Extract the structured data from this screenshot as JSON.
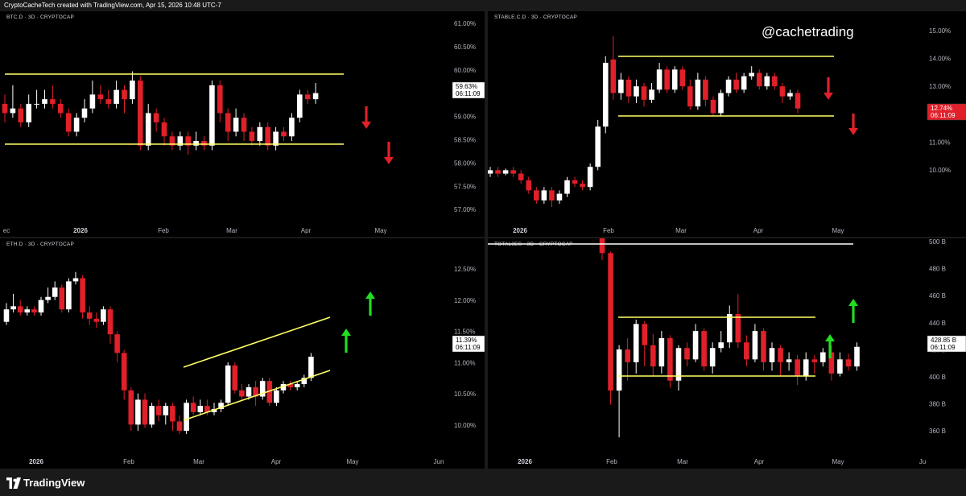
{
  "header": {
    "text": "CryptoCacheTech created with TradingView.com, Apr 15, 2026 10:48 UTC-7"
  },
  "watermark": "@cachetrading",
  "footer": {
    "brand": "TradingView"
  },
  "colors": {
    "up": "#ffffff",
    "down": "#e0202a",
    "channel": "#ffff66",
    "arrow_down": "#e0202a",
    "arrow_up": "#22dd22"
  },
  "chart_data": [
    {
      "id": "btc",
      "type": "candlestick",
      "title": "BTC.D · 3D · CRYPTOCAP",
      "y_ticks": [
        "61.00%",
        "60.50%",
        "60.00%",
        "59.50%",
        "59.00%",
        "58.50%",
        "58.00%",
        "57.50%",
        "57.00%"
      ],
      "x_labels": [
        "ec",
        "2026",
        "Feb",
        "Mar",
        "Apr",
        "May"
      ],
      "last_price": "59.63%",
      "countdown": "06:11:09",
      "price_tag_color": "#ffffff",
      "ylim": [
        56.85,
        61.15
      ],
      "candles": [
        {
          "o": 59.4,
          "c": 59.2,
          "h": 59.6,
          "l": 59.0
        },
        {
          "o": 59.2,
          "c": 59.3,
          "h": 59.8,
          "l": 59.1
        },
        {
          "o": 59.3,
          "c": 59.0,
          "h": 59.4,
          "l": 58.9
        },
        {
          "o": 59.0,
          "c": 59.4,
          "h": 59.6,
          "l": 58.9
        },
        {
          "o": 59.4,
          "c": 59.4,
          "h": 59.7,
          "l": 59.3
        },
        {
          "o": 59.4,
          "c": 59.5,
          "h": 59.7,
          "l": 59.3
        },
        {
          "o": 59.5,
          "c": 59.4,
          "h": 59.8,
          "l": 59.3
        },
        {
          "o": 59.4,
          "c": 59.2,
          "h": 59.5,
          "l": 59.1
        },
        {
          "o": 59.2,
          "c": 58.8,
          "h": 59.3,
          "l": 58.7
        },
        {
          "o": 58.8,
          "c": 59.1,
          "h": 59.2,
          "l": 58.7
        },
        {
          "o": 59.1,
          "c": 59.3,
          "h": 59.5,
          "l": 59.0
        },
        {
          "o": 59.3,
          "c": 59.6,
          "h": 59.9,
          "l": 59.2
        },
        {
          "o": 59.6,
          "c": 59.5,
          "h": 59.8,
          "l": 59.4
        },
        {
          "o": 59.5,
          "c": 59.4,
          "h": 59.7,
          "l": 59.3
        },
        {
          "o": 59.4,
          "c": 59.7,
          "h": 59.9,
          "l": 59.3
        },
        {
          "o": 59.7,
          "c": 59.5,
          "h": 59.8,
          "l": 59.2
        },
        {
          "o": 59.5,
          "c": 59.9,
          "h": 60.1,
          "l": 59.4
        },
        {
          "o": 59.9,
          "c": 58.5,
          "h": 60.0,
          "l": 58.4
        },
        {
          "o": 58.5,
          "c": 59.2,
          "h": 59.4,
          "l": 58.4
        },
        {
          "o": 59.2,
          "c": 59.0,
          "h": 59.3,
          "l": 58.8
        },
        {
          "o": 59.0,
          "c": 58.7,
          "h": 59.1,
          "l": 58.5
        },
        {
          "o": 58.7,
          "c": 58.5,
          "h": 58.8,
          "l": 58.4
        },
        {
          "o": 58.5,
          "c": 58.7,
          "h": 58.8,
          "l": 58.4
        },
        {
          "o": 58.7,
          "c": 58.5,
          "h": 58.8,
          "l": 58.3
        },
        {
          "o": 58.5,
          "c": 58.6,
          "h": 58.8,
          "l": 58.4
        },
        {
          "o": 58.6,
          "c": 58.5,
          "h": 58.7,
          "l": 58.4
        },
        {
          "o": 58.5,
          "c": 59.8,
          "h": 59.9,
          "l": 58.4
        },
        {
          "o": 59.8,
          "c": 59.2,
          "h": 59.9,
          "l": 59.0
        },
        {
          "o": 59.2,
          "c": 58.8,
          "h": 59.3,
          "l": 58.6
        },
        {
          "o": 58.8,
          "c": 59.1,
          "h": 59.3,
          "l": 58.7
        },
        {
          "o": 59.1,
          "c": 58.8,
          "h": 59.2,
          "l": 58.6
        },
        {
          "o": 58.8,
          "c": 58.6,
          "h": 58.9,
          "l": 58.5
        },
        {
          "o": 58.6,
          "c": 58.9,
          "h": 59.0,
          "l": 58.5
        },
        {
          "o": 58.9,
          "c": 58.5,
          "h": 59.0,
          "l": 58.4
        },
        {
          "o": 58.5,
          "c": 58.8,
          "h": 58.9,
          "l": 58.4
        },
        {
          "o": 58.8,
          "c": 58.7,
          "h": 58.9,
          "l": 58.6
        },
        {
          "o": 58.7,
          "c": 59.1,
          "h": 59.2,
          "l": 58.6
        },
        {
          "o": 59.1,
          "c": 59.6,
          "h": 59.7,
          "l": 59.0
        },
        {
          "o": 59.6,
          "c": 59.5,
          "h": 59.7,
          "l": 59.4
        },
        {
          "o": 59.5,
          "c": 59.63,
          "h": 59.85,
          "l": 59.4
        }
      ]
    },
    {
      "id": "stable",
      "type": "candlestick",
      "title": "STABLE.C.D · 3D · CRYPTOCAP",
      "y_ticks": [
        "15.00%",
        "14.00%",
        "13.00%",
        "12.00%",
        "11.00%",
        "10.00%"
      ],
      "x_labels": [
        "2026",
        "Feb",
        "Mar",
        "Apr",
        "May"
      ],
      "last_price": "12.74%",
      "countdown": "06:11:09",
      "price_tag_color": "#e0202a",
      "ylim": [
        9.35,
        15.3
      ],
      "candles": [
        {
          "o": 10.8,
          "c": 10.9,
          "h": 11.0,
          "l": 10.7
        },
        {
          "o": 10.9,
          "c": 10.8,
          "h": 11.0,
          "l": 10.7
        },
        {
          "o": 10.8,
          "c": 10.9,
          "h": 10.95,
          "l": 10.75
        },
        {
          "o": 10.9,
          "c": 10.8,
          "h": 11.0,
          "l": 10.7
        },
        {
          "o": 10.8,
          "c": 10.6,
          "h": 10.9,
          "l": 10.5
        },
        {
          "o": 10.6,
          "c": 10.3,
          "h": 10.7,
          "l": 10.2
        },
        {
          "o": 10.3,
          "c": 10.0,
          "h": 10.4,
          "l": 9.9
        },
        {
          "o": 10.0,
          "c": 10.3,
          "h": 10.4,
          "l": 9.9
        },
        {
          "o": 10.3,
          "c": 10.0,
          "h": 10.4,
          "l": 9.8
        },
        {
          "o": 10.0,
          "c": 10.2,
          "h": 10.3,
          "l": 9.9
        },
        {
          "o": 10.2,
          "c": 10.6,
          "h": 10.7,
          "l": 10.1
        },
        {
          "o": 10.6,
          "c": 10.5,
          "h": 10.7,
          "l": 10.4
        },
        {
          "o": 10.5,
          "c": 10.4,
          "h": 10.6,
          "l": 10.3
        },
        {
          "o": 10.4,
          "c": 11.0,
          "h": 11.1,
          "l": 10.3
        },
        {
          "o": 11.0,
          "c": 12.2,
          "h": 12.4,
          "l": 10.9
        },
        {
          "o": 12.2,
          "c": 14.1,
          "h": 14.3,
          "l": 12.0
        },
        {
          "o": 14.2,
          "c": 13.2,
          "h": 14.9,
          "l": 13.0
        },
        {
          "o": 13.2,
          "c": 13.6,
          "h": 13.8,
          "l": 13.0
        },
        {
          "o": 13.6,
          "c": 13.1,
          "h": 13.7,
          "l": 12.9
        },
        {
          "o": 13.1,
          "c": 13.4,
          "h": 13.6,
          "l": 12.9
        },
        {
          "o": 13.4,
          "c": 13.0,
          "h": 13.5,
          "l": 12.8
        },
        {
          "o": 13.0,
          "c": 13.3,
          "h": 13.5,
          "l": 12.9
        },
        {
          "o": 13.3,
          "c": 13.9,
          "h": 14.1,
          "l": 13.2
        },
        {
          "o": 13.9,
          "c": 13.3,
          "h": 14.0,
          "l": 13.2
        },
        {
          "o": 13.3,
          "c": 13.9,
          "h": 14.0,
          "l": 13.2
        },
        {
          "o": 13.9,
          "c": 13.4,
          "h": 14.0,
          "l": 13.3
        },
        {
          "o": 13.4,
          "c": 12.8,
          "h": 13.6,
          "l": 12.7
        },
        {
          "o": 12.8,
          "c": 13.6,
          "h": 13.8,
          "l": 12.7
        },
        {
          "o": 13.6,
          "c": 13.0,
          "h": 13.7,
          "l": 12.8
        },
        {
          "o": 13.0,
          "c": 12.6,
          "h": 13.1,
          "l": 12.5
        },
        {
          "o": 12.6,
          "c": 13.2,
          "h": 13.3,
          "l": 12.5
        },
        {
          "o": 13.2,
          "c": 13.6,
          "h": 13.7,
          "l": 13.1
        },
        {
          "o": 13.6,
          "c": 13.3,
          "h": 13.8,
          "l": 13.2
        },
        {
          "o": 13.3,
          "c": 13.7,
          "h": 13.8,
          "l": 13.2
        },
        {
          "o": 13.7,
          "c": 13.8,
          "h": 14.0,
          "l": 13.6
        },
        {
          "o": 13.8,
          "c": 13.4,
          "h": 13.9,
          "l": 13.3
        },
        {
          "o": 13.4,
          "c": 13.7,
          "h": 13.8,
          "l": 13.3
        },
        {
          "o": 13.7,
          "c": 13.4,
          "h": 13.8,
          "l": 13.3
        },
        {
          "o": 13.4,
          "c": 13.1,
          "h": 13.5,
          "l": 12.9
        },
        {
          "o": 13.1,
          "c": 13.2,
          "h": 13.3,
          "l": 13.0
        },
        {
          "o": 13.2,
          "c": 12.74,
          "h": 13.3,
          "l": 12.6
        }
      ]
    },
    {
      "id": "eth",
      "type": "candlestick",
      "title": "ETH.D · 3D · CRYPTOCAP",
      "y_ticks": [
        "12.50%",
        "12.00%",
        "11.50%",
        "11.00%",
        "10.50%",
        "10.00%"
      ],
      "x_labels": [
        "2026",
        "Feb",
        "Mar",
        "Apr",
        "May",
        "Jun"
      ],
      "last_price": "11.39%",
      "countdown": "06:11:09",
      "price_tag_color": "#ffffff",
      "ylim": [
        9.8,
        12.98
      ],
      "candles": [
        {
          "o": 11.95,
          "c": 12.15,
          "h": 12.25,
          "l": 11.9
        },
        {
          "o": 12.15,
          "c": 12.2,
          "h": 12.4,
          "l": 12.1
        },
        {
          "o": 12.2,
          "c": 12.1,
          "h": 12.3,
          "l": 12.05
        },
        {
          "o": 12.1,
          "c": 12.15,
          "h": 12.2,
          "l": 12.05
        },
        {
          "o": 12.15,
          "c": 12.1,
          "h": 12.2,
          "l": 12.05
        },
        {
          "o": 12.1,
          "c": 12.3,
          "h": 12.35,
          "l": 12.05
        },
        {
          "o": 12.3,
          "c": 12.35,
          "h": 12.5,
          "l": 12.25
        },
        {
          "o": 12.35,
          "c": 12.5,
          "h": 12.6,
          "l": 12.3
        },
        {
          "o": 12.5,
          "c": 12.15,
          "h": 12.55,
          "l": 12.1
        },
        {
          "o": 12.15,
          "c": 12.6,
          "h": 12.65,
          "l": 12.1
        },
        {
          "o": 12.6,
          "c": 12.65,
          "h": 12.75,
          "l": 12.55
        },
        {
          "o": 12.65,
          "c": 12.1,
          "h": 12.7,
          "l": 12.0
        },
        {
          "o": 12.1,
          "c": 12.0,
          "h": 12.2,
          "l": 11.9
        },
        {
          "o": 12.0,
          "c": 11.95,
          "h": 12.1,
          "l": 11.85
        },
        {
          "o": 11.95,
          "c": 12.15,
          "h": 12.2,
          "l": 11.9
        },
        {
          "o": 12.15,
          "c": 11.75,
          "h": 12.2,
          "l": 11.6
        },
        {
          "o": 11.75,
          "c": 11.45,
          "h": 11.8,
          "l": 11.3
        },
        {
          "o": 11.45,
          "c": 10.85,
          "h": 11.5,
          "l": 10.7
        },
        {
          "o": 10.85,
          "c": 10.3,
          "h": 10.9,
          "l": 10.2
        },
        {
          "o": 10.3,
          "c": 10.7,
          "h": 10.8,
          "l": 10.2
        },
        {
          "o": 10.7,
          "c": 10.3,
          "h": 10.8,
          "l": 10.25
        },
        {
          "o": 10.3,
          "c": 10.6,
          "h": 10.65,
          "l": 10.25
        },
        {
          "o": 10.6,
          "c": 10.45,
          "h": 10.7,
          "l": 10.35
        },
        {
          "o": 10.45,
          "c": 10.6,
          "h": 10.65,
          "l": 10.3
        },
        {
          "o": 10.6,
          "c": 10.35,
          "h": 10.65,
          "l": 10.2
        },
        {
          "o": 10.35,
          "c": 10.2,
          "h": 10.45,
          "l": 10.15
        },
        {
          "o": 10.2,
          "c": 10.65,
          "h": 10.7,
          "l": 10.15
        },
        {
          "o": 10.65,
          "c": 10.5,
          "h": 10.75,
          "l": 10.45
        },
        {
          "o": 10.5,
          "c": 10.6,
          "h": 10.7,
          "l": 10.45
        },
        {
          "o": 10.6,
          "c": 10.5,
          "h": 10.7,
          "l": 10.45
        },
        {
          "o": 10.5,
          "c": 10.55,
          "h": 10.65,
          "l": 10.45
        },
        {
          "o": 10.55,
          "c": 10.65,
          "h": 10.7,
          "l": 10.5
        },
        {
          "o": 10.65,
          "c": 11.25,
          "h": 11.3,
          "l": 10.6
        },
        {
          "o": 11.25,
          "c": 10.85,
          "h": 11.3,
          "l": 10.8
        },
        {
          "o": 10.85,
          "c": 10.75,
          "h": 10.95,
          "l": 10.7
        },
        {
          "o": 10.75,
          "c": 10.9,
          "h": 10.95,
          "l": 10.7
        },
        {
          "o": 10.9,
          "c": 10.75,
          "h": 11.0,
          "l": 10.6
        },
        {
          "o": 10.75,
          "c": 11.0,
          "h": 11.05,
          "l": 10.7
        },
        {
          "o": 11.0,
          "c": 10.65,
          "h": 11.05,
          "l": 10.6
        },
        {
          "o": 10.65,
          "c": 10.85,
          "h": 10.9,
          "l": 10.6
        },
        {
          "o": 10.85,
          "c": 10.95,
          "h": 11.0,
          "l": 10.8
        },
        {
          "o": 10.95,
          "c": 10.9,
          "h": 11.0,
          "l": 10.85
        },
        {
          "o": 10.9,
          "c": 10.95,
          "h": 11.0,
          "l": 10.85
        },
        {
          "o": 10.95,
          "c": 11.05,
          "h": 11.1,
          "l": 10.9
        },
        {
          "o": 11.05,
          "c": 11.39,
          "h": 11.45,
          "l": 11.0
        }
      ]
    },
    {
      "id": "total3",
      "type": "candlestick",
      "title": "TOTAL3ES · 3D · CRYPTOCAP",
      "y_ticks": [
        "500 B",
        "480 B",
        "460 B",
        "440 B",
        "420 B",
        "400 B",
        "380 B",
        "360 B"
      ],
      "x_labels": [
        "2026",
        "Feb",
        "Mar",
        "Apr",
        "May",
        "Ju"
      ],
      "last_price": "428.85 B",
      "countdown": "06:11:09",
      "price_tag_color": "#ffffff",
      "ylim": [
        352,
        502
      ],
      "candles": [
        {
          "o": 515,
          "c": 495,
          "h": 520,
          "l": 490
        },
        {
          "o": 495,
          "c": 398,
          "h": 496,
          "l": 388
        },
        {
          "o": 398,
          "c": 427,
          "h": 430,
          "l": 365
        },
        {
          "o": 427,
          "c": 418,
          "h": 435,
          "l": 405
        },
        {
          "o": 418,
          "c": 445,
          "h": 448,
          "l": 410
        },
        {
          "o": 445,
          "c": 430,
          "h": 447,
          "l": 415
        },
        {
          "o": 430,
          "c": 415,
          "h": 438,
          "l": 408
        },
        {
          "o": 415,
          "c": 435,
          "h": 440,
          "l": 410
        },
        {
          "o": 435,
          "c": 405,
          "h": 437,
          "l": 400
        },
        {
          "o": 405,
          "c": 428,
          "h": 430,
          "l": 398
        },
        {
          "o": 428,
          "c": 420,
          "h": 432,
          "l": 415
        },
        {
          "o": 420,
          "c": 440,
          "h": 445,
          "l": 418
        },
        {
          "o": 440,
          "c": 415,
          "h": 442,
          "l": 412
        },
        {
          "o": 415,
          "c": 428,
          "h": 432,
          "l": 410
        },
        {
          "o": 428,
          "c": 432,
          "h": 440,
          "l": 425
        },
        {
          "o": 432,
          "c": 452,
          "h": 458,
          "l": 428
        },
        {
          "o": 452,
          "c": 432,
          "h": 466,
          "l": 428
        },
        {
          "o": 432,
          "c": 420,
          "h": 437,
          "l": 415
        },
        {
          "o": 420,
          "c": 440,
          "h": 445,
          "l": 418
        },
        {
          "o": 440,
          "c": 418,
          "h": 442,
          "l": 412
        },
        {
          "o": 418,
          "c": 428,
          "h": 432,
          "l": 412
        },
        {
          "o": 428,
          "c": 418,
          "h": 430,
          "l": 408
        },
        {
          "o": 418,
          "c": 420,
          "h": 425,
          "l": 412
        },
        {
          "o": 420,
          "c": 408,
          "h": 423,
          "l": 402
        },
        {
          "o": 408,
          "c": 420,
          "h": 425,
          "l": 405
        },
        {
          "o": 420,
          "c": 418,
          "h": 423,
          "l": 410
        },
        {
          "o": 418,
          "c": 425,
          "h": 428,
          "l": 415
        },
        {
          "o": 425,
          "c": 410,
          "h": 430,
          "l": 405
        },
        {
          "o": 410,
          "c": 420,
          "h": 425,
          "l": 408
        },
        {
          "o": 420,
          "c": 415,
          "h": 424,
          "l": 412
        },
        {
          "o": 415,
          "c": 428.85,
          "h": 432,
          "l": 412
        }
      ]
    }
  ]
}
